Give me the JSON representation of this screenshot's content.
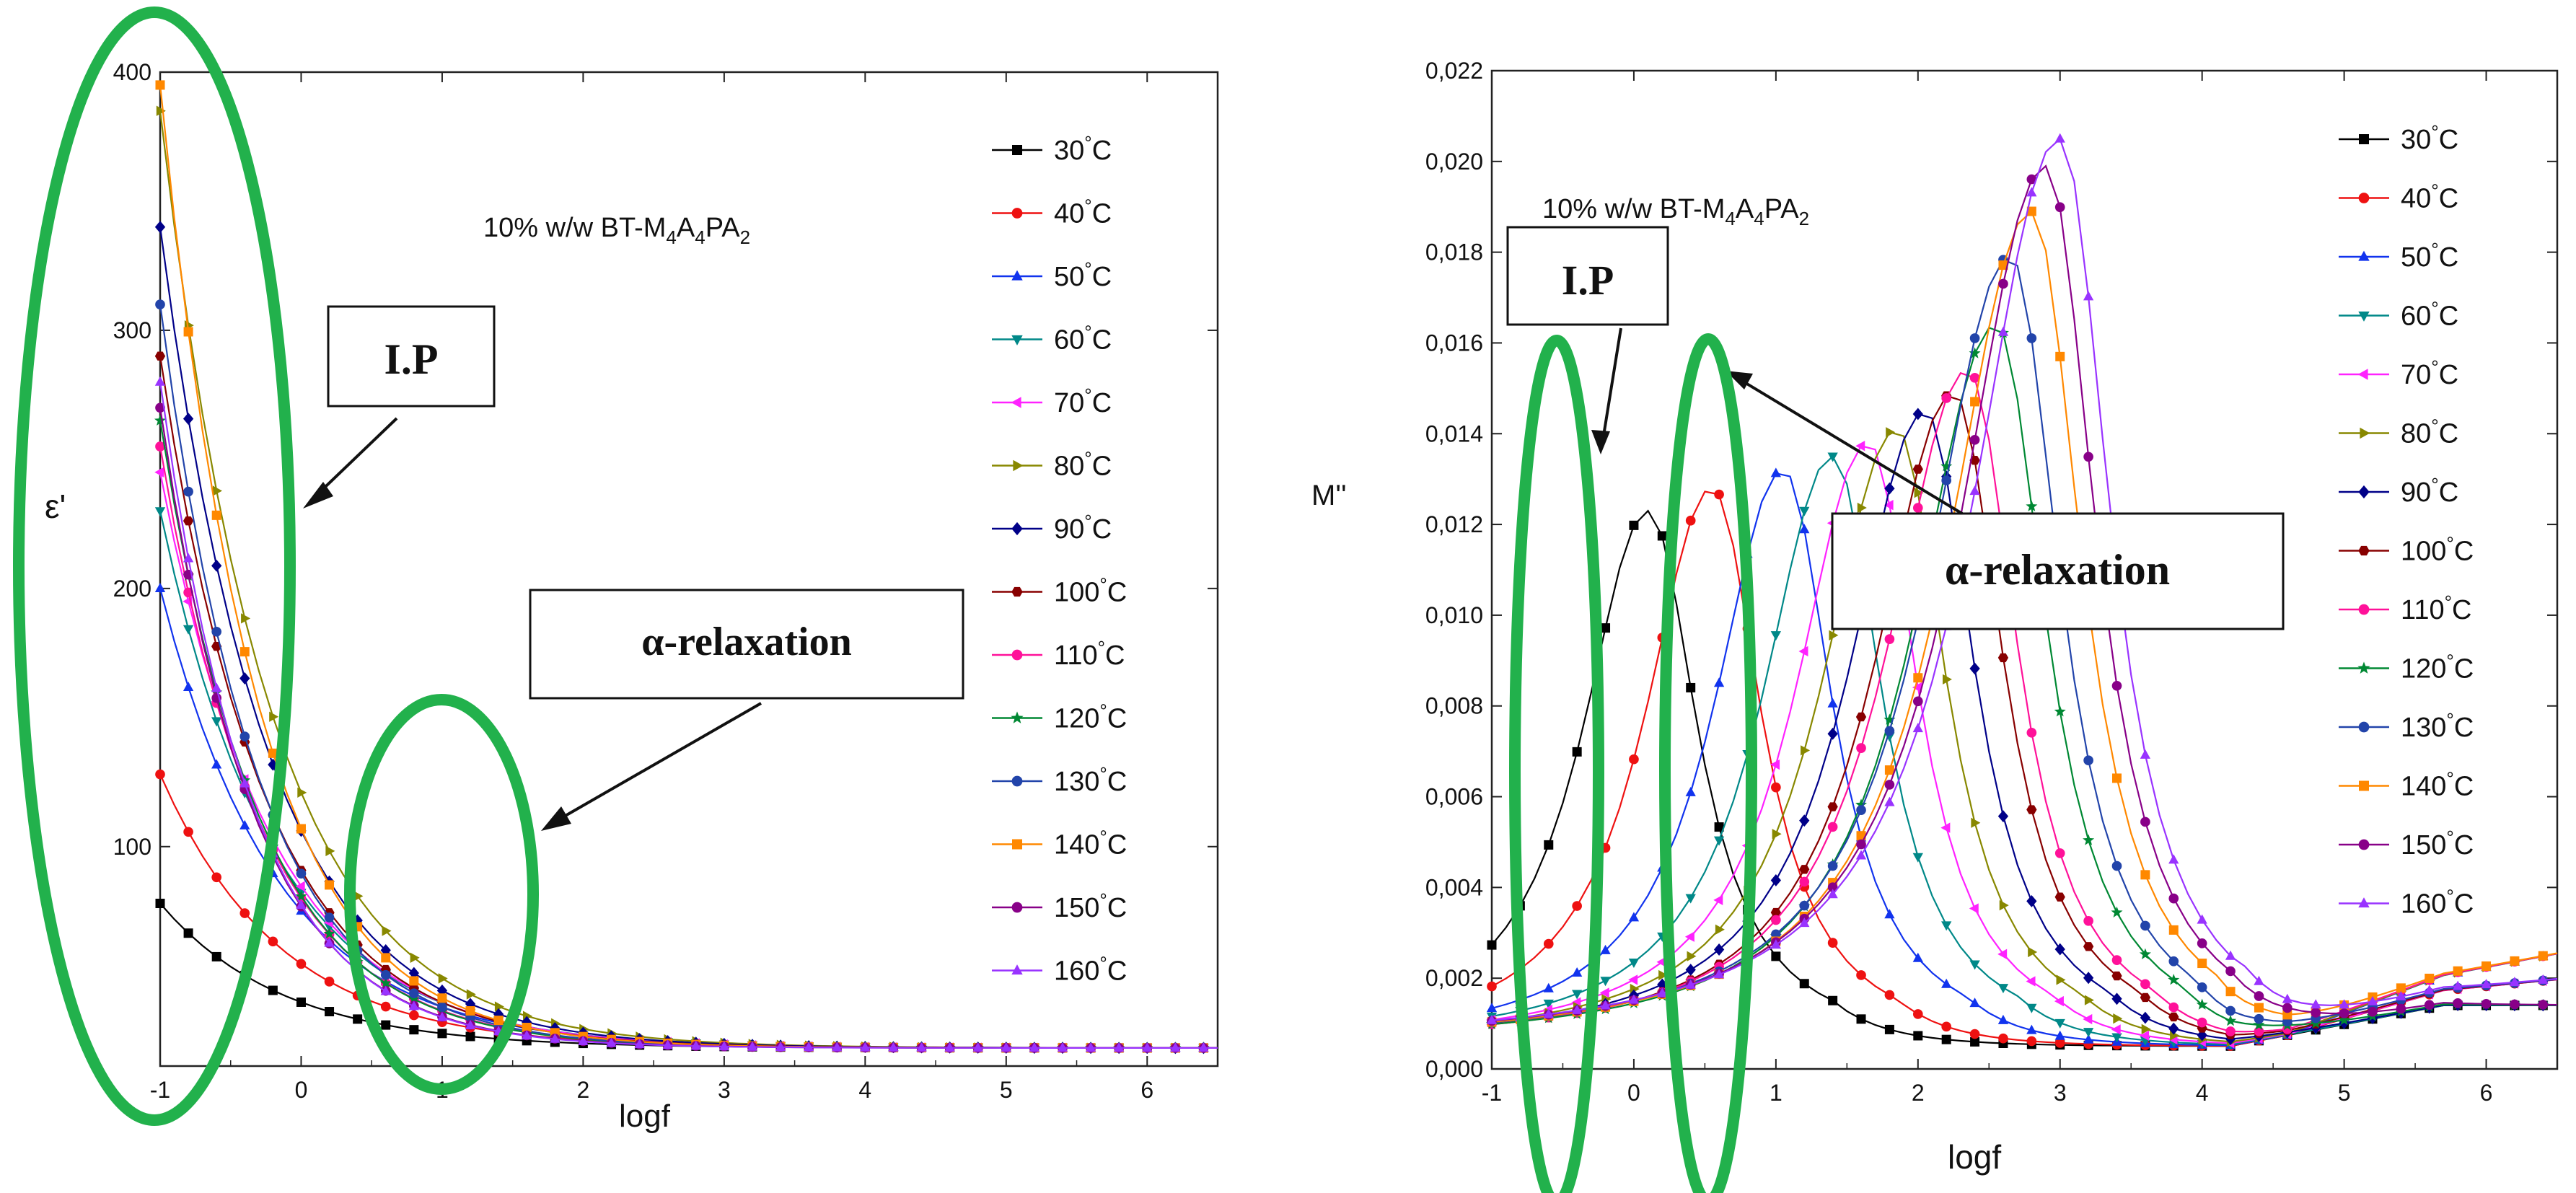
{
  "chart_data": [
    {
      "type": "line",
      "panel": "left",
      "title": "10% w/w BT-M4A4PA2",
      "title_parts": {
        "prefix": "10% w/w BT-M",
        "sub1": "4",
        "mid1": "A",
        "sub2": "4",
        "mid2": "PA",
        "sub3": "2"
      },
      "xlabel": "logf",
      "ylabel": "ε'",
      "xlim": [
        -1,
        6.5
      ],
      "ylim": [
        15,
        400
      ],
      "x_ticks": [
        "-1",
        "0",
        "1",
        "2",
        "3",
        "4",
        "5",
        "6"
      ],
      "y_ticks": [
        "100",
        "200",
        "300",
        "400"
      ],
      "annotations": [
        {
          "text": "I.P",
          "target_x": -1,
          "target_y": 160
        },
        {
          "text": "α-relaxation",
          "target_x": 1,
          "target_y": 70
        }
      ],
      "series": [
        {
          "name": "30°C",
          "value_at_min_logf": 78,
          "plateau": 22
        },
        {
          "name": "40°C",
          "value_at_min_logf": 128,
          "plateau": 22
        },
        {
          "name": "50°C",
          "value_at_min_logf": 200,
          "plateau": 22
        },
        {
          "name": "60°C",
          "value_at_min_logf": 230,
          "plateau": 22
        },
        {
          "name": "70°C",
          "value_at_min_logf": 245,
          "plateau": 22
        },
        {
          "name": "80°C",
          "value_at_min_logf": 385,
          "plateau": 22
        },
        {
          "name": "90°C",
          "value_at_min_logf": 340,
          "plateau": 22
        },
        {
          "name": "100°C",
          "value_at_min_logf": 290,
          "plateau": 22
        },
        {
          "name": "110°C",
          "value_at_min_logf": 255,
          "plateau": 22
        },
        {
          "name": "120°C",
          "value_at_min_logf": 265,
          "plateau": 22
        },
        {
          "name": "130°C",
          "value_at_min_logf": 310,
          "plateau": 22
        },
        {
          "name": "140°C",
          "value_at_min_logf": 395,
          "plateau": 22
        },
        {
          "name": "150°C",
          "value_at_min_logf": 270,
          "plateau": 22
        },
        {
          "name": "160°C",
          "value_at_min_logf": 280,
          "plateau": 22
        }
      ]
    },
    {
      "type": "line",
      "panel": "right",
      "title": "10% w/w BT-M4A4PA2",
      "title_parts": {
        "prefix": "10% w/w BT-M",
        "sub1": "4",
        "mid1": "A",
        "sub2": "4",
        "mid2": "PA",
        "sub3": "2"
      },
      "xlabel": "logf",
      "ylabel": "M''",
      "xlim": [
        -1,
        6.5
      ],
      "ylim": [
        0,
        0.022
      ],
      "x_ticks": [
        "-1",
        "0",
        "1",
        "2",
        "3",
        "4",
        "5",
        "6"
      ],
      "y_ticks": [
        "0,000",
        "0,002",
        "0,004",
        "0,006",
        "0,008",
        "0,010",
        "0,012",
        "0,014",
        "0,016",
        "0,018",
        "0,020",
        "0,022"
      ],
      "annotations": [
        {
          "text": "I.P",
          "target_x": -0.3,
          "target_y": 0.0135
        },
        {
          "text": "α-relaxation",
          "target_x": 0.6,
          "target_y": 0.0155
        }
      ],
      "series": [
        {
          "name": "30°C",
          "peak_logf": 0.1,
          "peak": 0.0127
        },
        {
          "name": "40°C",
          "peak_logf": 0.55,
          "peak": 0.0132
        },
        {
          "name": "50°C",
          "peak_logf": 1.05,
          "peak": 0.0136
        },
        {
          "name": "60°C",
          "peak_logf": 1.4,
          "peak": 0.0139
        },
        {
          "name": "70°C",
          "peak_logf": 1.65,
          "peak": 0.0142
        },
        {
          "name": "80°C",
          "peak_logf": 1.85,
          "peak": 0.0145
        },
        {
          "name": "90°C",
          "peak_logf": 2.05,
          "peak": 0.0149
        },
        {
          "name": "100°C",
          "peak_logf": 2.25,
          "peak": 0.0153
        },
        {
          "name": "110°C",
          "peak_logf": 2.35,
          "peak": 0.0158
        },
        {
          "name": "120°C",
          "peak_logf": 2.55,
          "peak": 0.0168
        },
        {
          "name": "130°C",
          "peak_logf": 2.65,
          "peak": 0.0183
        },
        {
          "name": "140°C",
          "peak_logf": 2.8,
          "peak": 0.0193
        },
        {
          "name": "150°C",
          "peak_logf": 2.9,
          "peak": 0.0203
        },
        {
          "name": "160°C",
          "peak_logf": 3.0,
          "peak": 0.0209
        }
      ]
    }
  ],
  "legend_labels": [
    "30°C",
    "40°C",
    "50°C",
    "60°C",
    "70°C",
    "80°C",
    "90°C",
    "100°C",
    "110°C",
    "120°C",
    "130°C",
    "140°C",
    "150°C",
    "160°C"
  ],
  "series_colors": [
    "#000000",
    "#ee1111",
    "#1133ee",
    "#008888",
    "#ff22ff",
    "#888800",
    "#000088",
    "#880000",
    "#ff1199",
    "#008833",
    "#2244aa",
    "#ff8800",
    "#880088",
    "#9933ff"
  ],
  "series_markers": [
    "square",
    "circle",
    "triangle-up",
    "triangle-down",
    "triangle-left",
    "triangle-right",
    "diamond",
    "hexagon",
    "circle",
    "star",
    "circle",
    "square",
    "circle",
    "triangle-up"
  ],
  "ellipse_color": "#22b14c"
}
